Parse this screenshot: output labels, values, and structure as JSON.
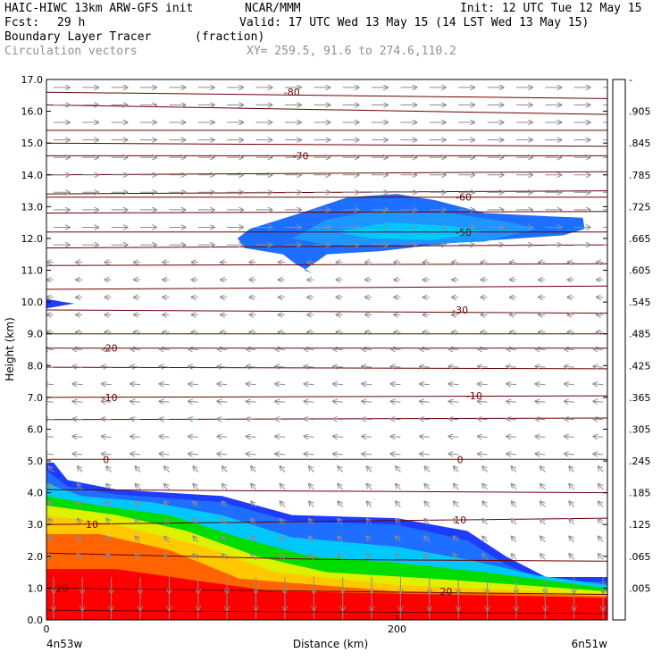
{
  "header": {
    "model": "HAIC-HIWC 13km ARW-GFS init",
    "org": "NCAR/MMM",
    "init": "Init: 12 UTC Tue 12 May 15",
    "fcst_label": "Fcst:",
    "fcst_value": "29 h",
    "valid": "Valid: 17 UTC Wed 13 May 15 (14 LST Wed 13 May 15)",
    "field": "Boundary Layer Tracer",
    "units": "(fraction)",
    "vectors": "Circulation vectors",
    "xy": "XY= 259.5, 91.6 to 274.6,110.2"
  },
  "chart_data": {
    "type": "heatmap",
    "title": "Boundary Layer Tracer",
    "xlabel": "Distance (km)",
    "ylabel": "Height (km)",
    "xlim": [
      0,
      320
    ],
    "ylim": [
      0,
      17
    ],
    "x_ticks": [
      {
        "value": 0,
        "label": "0"
      },
      {
        "value": 200,
        "label": "200"
      }
    ],
    "x_end_labels": {
      "left": "4n53w",
      "right": "6n51w"
    },
    "y_ticks": [
      0,
      1,
      2,
      3,
      4,
      5,
      6,
      7,
      8,
      9,
      10,
      11,
      12,
      13,
      14,
      15,
      16,
      17
    ],
    "y_tick_labels": [
      "0.0",
      "1.0",
      "2.0",
      "3.0",
      "4.0",
      "5.0",
      "6.0",
      "7.0",
      "8.0",
      "9.0",
      "10.0",
      "11.0",
      "12.0",
      "13.0",
      "14.0",
      "15.0",
      "16.0",
      "17.0"
    ],
    "colorbar": {
      "labels": [
        ".005",
        ".065",
        ".125",
        ".185",
        ".245",
        ".305",
        ".365",
        ".425",
        ".485",
        ".545",
        ".605",
        ".665",
        ".725",
        ".785",
        ".845",
        ".905",
        "-"
      ],
      "colors": [
        "#ffffff",
        "#1e3cff",
        "#1e6eff",
        "#1e96ff",
        "#00c8ff",
        "#00e6e6",
        "#00e696",
        "#00dc00",
        "#64e600",
        "#a0e632",
        "#dcf000",
        "#ffff00",
        "#ffc800",
        "#ff9600",
        "#ff6400",
        "#ff3200",
        "#ff0000"
      ]
    },
    "tracer_regions": [
      {
        "level": 0.005,
        "polygon": [
          [
            0,
            0
          ],
          [
            0,
            4.95
          ],
          [
            4,
            4.95
          ],
          [
            12,
            4.4
          ],
          [
            40,
            4.1
          ],
          [
            100,
            3.9
          ],
          [
            140,
            3.3
          ],
          [
            200,
            3.2
          ],
          [
            240,
            2.8
          ],
          [
            262,
            2.0
          ],
          [
            285,
            1.35
          ],
          [
            320,
            1.35
          ],
          [
            320,
            0
          ]
        ]
      },
      {
        "level": 0.065,
        "polygon": [
          [
            0,
            0
          ],
          [
            0,
            4.7
          ],
          [
            12,
            4.2
          ],
          [
            40,
            3.95
          ],
          [
            100,
            3.7
          ],
          [
            140,
            3.1
          ],
          [
            200,
            3.0
          ],
          [
            240,
            2.5
          ],
          [
            262,
            1.75
          ],
          [
            285,
            1.2
          ],
          [
            320,
            1.2
          ],
          [
            320,
            0
          ]
        ]
      },
      {
        "level": 0.185,
        "polygon": [
          [
            0,
            0
          ],
          [
            0,
            4.3
          ],
          [
            20,
            3.9
          ],
          [
            60,
            3.7
          ],
          [
            100,
            3.3
          ],
          [
            140,
            2.6
          ],
          [
            200,
            2.3
          ],
          [
            240,
            1.9
          ],
          [
            280,
            1.4
          ],
          [
            320,
            1.1
          ],
          [
            320,
            0
          ]
        ]
      },
      {
        "level": 0.365,
        "polygon": [
          [
            0,
            0
          ],
          [
            0,
            3.9
          ],
          [
            30,
            3.6
          ],
          [
            70,
            3.3
          ],
          [
            110,
            2.6
          ],
          [
            150,
            2.0
          ],
          [
            200,
            1.8
          ],
          [
            250,
            1.5
          ],
          [
            320,
            1.0
          ],
          [
            320,
            0
          ]
        ]
      },
      {
        "level": 0.545,
        "polygon": [
          [
            0,
            0
          ],
          [
            0,
            3.6
          ],
          [
            40,
            3.3
          ],
          [
            80,
            2.8
          ],
          [
            120,
            2.0
          ],
          [
            160,
            1.5
          ],
          [
            220,
            1.3
          ],
          [
            320,
            0.9
          ],
          [
            320,
            0
          ]
        ]
      },
      {
        "level": 0.665,
        "polygon": [
          [
            0,
            0
          ],
          [
            0,
            3.3
          ],
          [
            40,
            3.0
          ],
          [
            90,
            2.3
          ],
          [
            130,
            1.5
          ],
          [
            200,
            1.1
          ],
          [
            320,
            0.8
          ],
          [
            320,
            0
          ]
        ]
      },
      {
        "level": 0.785,
        "polygon": [
          [
            0,
            0
          ],
          [
            0,
            2.7
          ],
          [
            30,
            2.7
          ],
          [
            70,
            2.2
          ],
          [
            110,
            1.3
          ],
          [
            200,
            0.9
          ],
          [
            320,
            0.75
          ],
          [
            320,
            0
          ]
        ]
      },
      {
        "level": 0.905,
        "polygon": [
          [
            0,
            0
          ],
          [
            0,
            1.6
          ],
          [
            40,
            1.6
          ],
          [
            90,
            1.2
          ],
          [
            130,
            0.9
          ],
          [
            320,
            0.7
          ],
          [
            320,
            0
          ]
        ]
      },
      {
        "level": 0.005,
        "polygon": [
          [
            0,
            9.8
          ],
          [
            0,
            10.1
          ],
          [
            10,
            10.0
          ],
          [
            16,
            9.95
          ],
          [
            10,
            9.9
          ]
        ]
      },
      {
        "level": 0.065,
        "polygon": [
          [
            109,
            12.0
          ],
          [
            116,
            12.3
          ],
          [
            145,
            12.8
          ],
          [
            172,
            13.3
          ],
          [
            200,
            13.4
          ],
          [
            222,
            13.2
          ],
          [
            250,
            12.8
          ],
          [
            285,
            12.7
          ],
          [
            306,
            12.65
          ],
          [
            307,
            12.3
          ],
          [
            295,
            12.1
          ],
          [
            230,
            11.85
          ],
          [
            190,
            11.6
          ],
          [
            160,
            11.5
          ],
          [
            147,
            11.0
          ],
          [
            152,
            10.9
          ],
          [
            142,
            11.2
          ],
          [
            135,
            11.5
          ],
          [
            113,
            11.7
          ]
        ]
      },
      {
        "level": 0.125,
        "polygon": [
          [
            140,
            12.0
          ],
          [
            160,
            12.6
          ],
          [
            190,
            12.9
          ],
          [
            230,
            12.8
          ],
          [
            265,
            12.5
          ],
          [
            280,
            12.3
          ],
          [
            250,
            11.9
          ],
          [
            200,
            11.8
          ],
          [
            160,
            11.8
          ]
        ]
      },
      {
        "level": 0.185,
        "polygon": [
          [
            165,
            12.2
          ],
          [
            195,
            12.5
          ],
          [
            230,
            12.4
          ],
          [
            250,
            12.2
          ],
          [
            220,
            11.95
          ],
          [
            185,
            12.0
          ]
        ]
      }
    ],
    "contours_label": "",
    "contour_lines": [
      {
        "label": "-80",
        "label_pos": [
          140,
          16.6
        ],
        "points": [
          [
            0,
            16.6
          ],
          [
            320,
            16.4
          ]
        ]
      },
      {
        "label": "",
        "points": [
          [
            0,
            16.2
          ],
          [
            320,
            15.9
          ]
        ]
      },
      {
        "label": "",
        "points": [
          [
            0,
            15.4
          ],
          [
            320,
            15.4
          ]
        ]
      },
      {
        "label": "",
        "points": [
          [
            0,
            15.0
          ],
          [
            320,
            14.9
          ]
        ]
      },
      {
        "label": "-70",
        "label_pos": [
          145,
          14.6
        ],
        "points": [
          [
            0,
            14.6
          ],
          [
            320,
            14.6
          ]
        ]
      },
      {
        "label": "",
        "points": [
          [
            0,
            14.0
          ],
          [
            320,
            14.1
          ]
        ]
      },
      {
        "label": "",
        "points": [
          [
            0,
            13.4
          ],
          [
            320,
            13.5
          ]
        ]
      },
      {
        "label": "-60",
        "label_pos": [
          238,
          13.3
        ],
        "points": [
          [
            0,
            13.3
          ],
          [
            320,
            13.3
          ]
        ]
      },
      {
        "label": "",
        "points": [
          [
            0,
            12.8
          ],
          [
            320,
            12.85
          ]
        ]
      },
      {
        "label": "-50",
        "label_pos": [
          238,
          12.2
        ],
        "points": [
          [
            0,
            12.2
          ],
          [
            320,
            12.2
          ]
        ]
      },
      {
        "label": "",
        "points": [
          [
            0,
            11.7
          ],
          [
            320,
            11.8
          ]
        ]
      },
      {
        "label": "",
        "points": [
          [
            0,
            11.15
          ],
          [
            320,
            11.2
          ]
        ]
      },
      {
        "label": "",
        "points": [
          [
            0,
            10.4
          ],
          [
            320,
            10.5
          ]
        ]
      },
      {
        "label": "-30",
        "label_pos": [
          236,
          9.75
        ],
        "points": [
          [
            0,
            9.75
          ],
          [
            320,
            9.65
          ]
        ]
      },
      {
        "label": "",
        "points": [
          [
            0,
            9.0
          ],
          [
            320,
            9.0
          ]
        ]
      },
      {
        "label": "-20",
        "label_pos": [
          36,
          8.55
        ],
        "points": [
          [
            0,
            8.55
          ],
          [
            320,
            8.55
          ]
        ]
      },
      {
        "label": "",
        "points": [
          [
            0,
            7.95
          ],
          [
            320,
            7.9
          ]
        ]
      },
      {
        "label": "-10",
        "label_pos": [
          36,
          7.0
        ],
        "points": [
          [
            0,
            7.0
          ],
          [
            320,
            7.05
          ]
        ]
      },
      {
        "label": "-10",
        "label_pos": [
          244,
          7.05
        ],
        "points": [
          [
            0,
            6.3
          ],
          [
            320,
            6.35
          ]
        ]
      },
      {
        "label": "0",
        "label_pos": [
          34,
          5.05
        ],
        "points": [
          [
            0,
            5.05
          ],
          [
            320,
            5.05
          ]
        ]
      },
      {
        "label": "0",
        "label_pos": [
          236,
          5.05
        ],
        "points": [
          [
            0,
            4.1
          ],
          [
            320,
            4.0
          ]
        ]
      },
      {
        "label": "10",
        "label_pos": [
          26,
          3.0
        ],
        "points": [
          [
            0,
            3.0
          ],
          [
            160,
            3.1
          ],
          [
            320,
            3.2
          ]
        ]
      },
      {
        "label": "10",
        "label_pos": [
          236,
          3.15
        ],
        "points": [
          [
            0,
            2.1
          ],
          [
            160,
            1.9
          ],
          [
            320,
            1.85
          ]
        ]
      },
      {
        "label": "-20",
        "label_pos": [
          8,
          1.0
        ],
        "points": [
          [
            0,
            1.0
          ],
          [
            160,
            0.9
          ],
          [
            320,
            0.8
          ]
        ]
      },
      {
        "label": "20",
        "label_pos": [
          228,
          0.9
        ],
        "points": [
          [
            0,
            0.3
          ],
          [
            320,
            0.2
          ]
        ]
      }
    ],
    "vector_field": {
      "color": "#8c8c8c",
      "description_levels": [
        {
          "z_min": 11.5,
          "z_max": 17.0,
          "u": 1.0,
          "w": 0.0
        },
        {
          "z_min": 9.0,
          "z_max": 11.5,
          "u": -0.4,
          "w": 0.0
        },
        {
          "z_min": 5.0,
          "z_max": 9.0,
          "u": -0.6,
          "w": 0.05
        },
        {
          "z_min": 1.6,
          "z_max": 5.0,
          "u": -0.3,
          "w": 0.35
        },
        {
          "z_min": 0.0,
          "z_max": 1.6,
          "u": 0.0,
          "w": -1.0
        }
      ]
    }
  }
}
